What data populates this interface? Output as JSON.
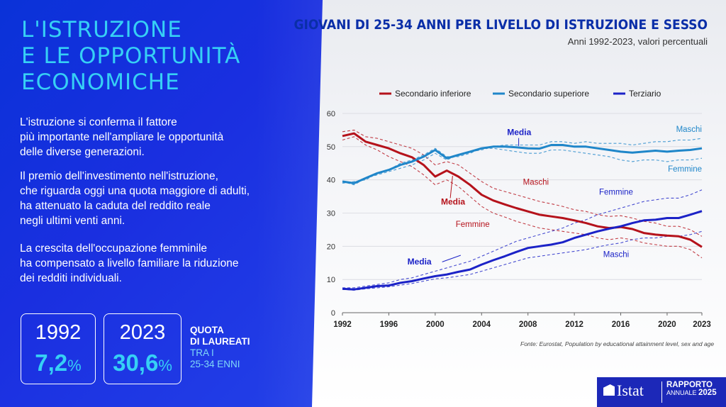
{
  "left_panel": {
    "title_lines": [
      "L'ISTRUZIONE",
      "E LE OPPORTUNITÀ",
      "ECONOMICHE"
    ],
    "paragraphs": [
      [
        "L'istruzione si conferma il fattore",
        "più importante nell'ampliare le opportunità",
        "delle diverse generazioni."
      ],
      [
        "Il premio dell'investimento nell'istruzione,",
        "che riguarda oggi una quota maggiore di adulti,",
        "ha attenuato la caduta del reddito reale",
        "negli ultimi venti anni."
      ],
      [
        "La crescita dell'occupazione femminile",
        "ha compensato a livello familiare la riduzione",
        "dei redditi individuali."
      ]
    ],
    "stat_1992": {
      "year": "1992",
      "value": "7,2",
      "unit": "%"
    },
    "stat_2023": {
      "year": "2023",
      "value": "30,6",
      "unit": "%"
    },
    "quota_label": {
      "line1": "QUOTA",
      "line2": "DI LAUREATI",
      "line3": "TRA I",
      "line4": "25-34 ENNI"
    }
  },
  "footer": {
    "brand": "Istat",
    "report_line1": "RAPPORTO",
    "report_line2a": "ANNUALE ",
    "report_line2b": "2025"
  },
  "colors": {
    "secondario_inferiore": "#b5121b",
    "secondario_superiore": "#1f86c9",
    "terziario": "#1b22c7",
    "accent": "#36d0f5"
  },
  "chart_data": {
    "type": "line",
    "title": "GIOVANI DI 25-34 ANNI PER LIVELLO DI ISTRUZIONE E SESSO",
    "subtitle": "Anni 1992-2023, valori percentuali",
    "source": "Fonte: Eurostat, Population by educational attainment level, sex and age",
    "x": [
      1992,
      1993,
      1994,
      1995,
      1996,
      1997,
      1998,
      1999,
      2000,
      2001,
      2002,
      2003,
      2004,
      2005,
      2006,
      2007,
      2008,
      2009,
      2010,
      2011,
      2012,
      2013,
      2014,
      2015,
      2016,
      2017,
      2018,
      2019,
      2020,
      2021,
      2022,
      2023
    ],
    "xticks": [
      "1992",
      "1996",
      "2000",
      "2004",
      "2008",
      "2012",
      "2016",
      "2020",
      "2023"
    ],
    "xtick_values": [
      1992,
      1996,
      2000,
      2004,
      2008,
      2012,
      2016,
      2020,
      2023
    ],
    "yticks": [
      "0",
      "10",
      "20",
      "30",
      "40",
      "50",
      "60"
    ],
    "ylim": [
      0,
      60
    ],
    "legend_position": "top",
    "series": [
      {
        "name": "Secondario inferiore",
        "key": "inf",
        "style": "solid",
        "values": [
          53.2,
          54.0,
          51.5,
          50.5,
          49.5,
          48.0,
          46.8,
          44.5,
          41.0,
          42.8,
          41.0,
          38.5,
          35.5,
          33.8,
          32.6,
          31.5,
          30.5,
          29.5,
          29.0,
          28.5,
          27.8,
          27.0,
          26.0,
          25.5,
          25.8,
          25.2,
          24.0,
          23.5,
          23.2,
          23.0,
          22.0,
          19.8
        ]
      },
      {
        "name": "Secondario superiore",
        "key": "sup",
        "style": "solid",
        "values": [
          39.5,
          39.0,
          40.5,
          42.0,
          43.0,
          44.5,
          45.5,
          47.0,
          49.0,
          46.5,
          47.5,
          48.5,
          49.5,
          50.0,
          50.0,
          49.8,
          49.5,
          49.4,
          50.5,
          50.5,
          50.0,
          50.0,
          49.5,
          49.0,
          48.5,
          48.2,
          48.5,
          48.8,
          48.5,
          48.8,
          49.0,
          49.5
        ]
      },
      {
        "name": "Terziario",
        "key": "ter",
        "style": "solid",
        "values": [
          7.2,
          7.0,
          7.5,
          8.0,
          8.2,
          9.0,
          9.5,
          10.3,
          11.0,
          11.5,
          12.3,
          13.0,
          14.5,
          15.8,
          17.0,
          18.3,
          19.5,
          20.0,
          20.5,
          21.2,
          22.5,
          23.5,
          24.5,
          25.3,
          26.0,
          27.0,
          27.8,
          28.0,
          28.5,
          28.5,
          29.5,
          30.6
        ]
      },
      {
        "name": "Secondario inferiore Maschi",
        "key": "inf_m",
        "style": "dashed",
        "values": [
          54.5,
          55.0,
          53.0,
          52.5,
          51.5,
          50.5,
          49.5,
          47.5,
          44.5,
          45.5,
          44.5,
          42.0,
          39.5,
          37.5,
          36.5,
          35.5,
          34.5,
          33.5,
          32.8,
          32.0,
          31.0,
          30.5,
          29.5,
          29.0,
          29.2,
          28.5,
          27.5,
          27.0,
          26.0,
          26.0,
          25.0,
          23.0
        ]
      },
      {
        "name": "Secondario inferiore Femmine",
        "key": "inf_f",
        "style": "dashed",
        "values": [
          52.0,
          53.0,
          50.5,
          49.0,
          47.0,
          45.5,
          44.0,
          41.5,
          38.5,
          40.0,
          38.0,
          35.0,
          32.0,
          30.0,
          28.8,
          27.5,
          26.5,
          25.5,
          25.0,
          24.5,
          24.0,
          23.5,
          22.5,
          22.0,
          22.5,
          22.0,
          21.0,
          20.5,
          20.0,
          20.0,
          19.0,
          16.5
        ]
      },
      {
        "name": "Secondario superiore Maschi",
        "key": "sup_m",
        "style": "dashed",
        "values": [
          39.5,
          38.5,
          40.5,
          41.5,
          42.5,
          43.5,
          44.5,
          46.0,
          48.0,
          46.0,
          47.5,
          48.5,
          49.0,
          50.0,
          50.5,
          50.5,
          50.5,
          50.5,
          51.5,
          51.5,
          51.0,
          51.5,
          51.0,
          51.0,
          51.0,
          50.5,
          51.0,
          51.5,
          51.5,
          52.0,
          52.0,
          52.5
        ]
      },
      {
        "name": "Secondario superiore Femmine",
        "key": "sup_f",
        "style": "dashed",
        "values": [
          39.0,
          39.5,
          40.0,
          42.0,
          43.0,
          45.0,
          46.0,
          47.5,
          49.5,
          47.0,
          47.0,
          48.0,
          49.5,
          49.5,
          49.0,
          48.5,
          48.0,
          48.0,
          49.0,
          49.0,
          48.5,
          48.0,
          47.5,
          47.0,
          46.0,
          45.5,
          46.0,
          46.0,
          45.5,
          46.0,
          46.0,
          46.5
        ]
      },
      {
        "name": "Terziario Femmine",
        "key": "ter_f",
        "style": "dashed",
        "values": [
          7.5,
          7.5,
          8.0,
          8.5,
          9.0,
          10.0,
          10.5,
          11.5,
          12.5,
          13.5,
          14.5,
          15.5,
          17.0,
          18.5,
          20.0,
          21.5,
          22.5,
          23.5,
          24.5,
          25.5,
          27.0,
          28.0,
          29.5,
          30.5,
          31.5,
          32.5,
          33.5,
          34.0,
          34.5,
          34.5,
          35.5,
          37.0
        ]
      },
      {
        "name": "Terziario Maschi",
        "key": "ter_m",
        "style": "dashed",
        "values": [
          7.0,
          6.8,
          7.2,
          7.5,
          7.8,
          8.3,
          8.8,
          9.5,
          10.2,
          10.5,
          11.0,
          11.5,
          12.5,
          13.5,
          14.5,
          15.5,
          16.5,
          17.0,
          17.5,
          18.0,
          18.5,
          19.0,
          19.8,
          20.5,
          21.0,
          22.0,
          22.5,
          22.5,
          23.0,
          23.0,
          23.5,
          24.5
        ]
      }
    ],
    "annotations": {
      "media_sup": "Media",
      "media_inf": "Media",
      "media_ter": "Media",
      "sup_m": "Maschi",
      "sup_f": "Femmine",
      "inf_m": "Maschi",
      "inf_f": "Femmine",
      "ter_f": "Femmine",
      "ter_m": "Maschi"
    }
  }
}
